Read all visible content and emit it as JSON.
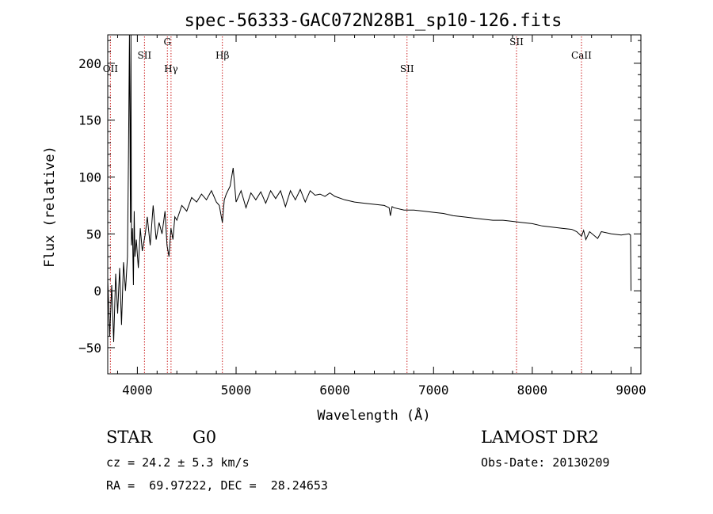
{
  "chart_data": {
    "type": "line",
    "title": "spec-56333-GAC072N28B1_sp10-126.fits",
    "xlabel": "Wavelength (Å)",
    "ylabel": "Flux (relative)",
    "xlim": [
      3700,
      9100
    ],
    "ylim": [
      -73,
      225
    ],
    "x_ticks": [
      4000,
      5000,
      6000,
      7000,
      8000,
      9000
    ],
    "y_ticks": [
      -50,
      0,
      50,
      100,
      150,
      200
    ],
    "grid": false,
    "series": [
      {
        "x": [
          3700,
          3720,
          3740,
          3760,
          3780,
          3800,
          3820,
          3840,
          3860,
          3880,
          3900,
          3910,
          3920,
          3930,
          3935,
          3940,
          3950,
          3960,
          3968,
          3975,
          3990,
          4010,
          4030,
          4050,
          4080,
          4100,
          4130,
          4160,
          4190,
          4220,
          4250,
          4280,
          4300,
          4320,
          4340,
          4360,
          4380,
          4400,
          4450,
          4500,
          4550,
          4600,
          4650,
          4700,
          4750,
          4800,
          4830,
          4861,
          4880,
          4900,
          4940,
          4970,
          5000,
          5050,
          5100,
          5150,
          5200,
          5250,
          5300,
          5350,
          5400,
          5450,
          5500,
          5550,
          5600,
          5650,
          5700,
          5750,
          5800,
          5850,
          5900,
          5950,
          6000,
          6100,
          6200,
          6300,
          6400,
          6500,
          6550,
          6563,
          6580,
          6600,
          6700,
          6800,
          6900,
          7000,
          7100,
          7200,
          7300,
          7400,
          7500,
          7600,
          7700,
          7800,
          7900,
          8000,
          8100,
          8200,
          8300,
          8400,
          8450,
          8498,
          8520,
          8542,
          8580,
          8662,
          8700,
          8800,
          8900,
          8980,
          8995,
          9000
        ],
        "y": [
          10,
          -40,
          5,
          -45,
          15,
          -20,
          20,
          -30,
          25,
          0,
          30,
          120,
          225,
          60,
          225,
          40,
          55,
          5,
          70,
          30,
          45,
          20,
          55,
          35,
          50,
          65,
          40,
          75,
          45,
          60,
          50,
          70,
          40,
          30,
          55,
          45,
          65,
          62,
          75,
          70,
          82,
          78,
          85,
          80,
          88,
          78,
          75,
          60,
          80,
          85,
          92,
          108,
          78,
          88,
          73,
          86,
          80,
          87,
          77,
          88,
          81,
          88,
          74,
          88,
          80,
          89,
          78,
          88,
          84,
          85,
          83,
          86,
          83,
          80,
          78,
          77,
          76,
          75,
          73,
          66,
          74,
          73,
          71,
          71,
          70,
          69,
          68,
          66,
          65,
          64,
          63,
          62,
          62,
          61,
          60,
          59,
          57,
          56,
          55,
          54,
          52,
          48,
          53,
          45,
          52,
          46,
          52,
          50,
          49,
          50,
          49,
          0
        ]
      }
    ],
    "lines": [
      {
        "name": "OII",
        "x": 3727
      },
      {
        "name": "SII",
        "x": 4072
      },
      {
        "name": "G",
        "x": 4304
      },
      {
        "name": "Hγ",
        "x": 4341
      },
      {
        "name": "Hβ",
        "x": 4861
      },
      {
        "name": "SII",
        "x": 6731
      },
      {
        "name": "SII",
        "x": 7840
      },
      {
        "name": "CaII",
        "x": 8498
      }
    ],
    "line_color": "#cc2222"
  },
  "info": {
    "class_label": "STAR",
    "subclass": "G0",
    "survey": "LAMOST DR2",
    "cz_text": "cz = 24.2 ± 5.3 km/s",
    "obs_date_text": "Obs-Date: 20130209",
    "coord_text": "RA =  69.97222, DEC =  28.24653"
  }
}
